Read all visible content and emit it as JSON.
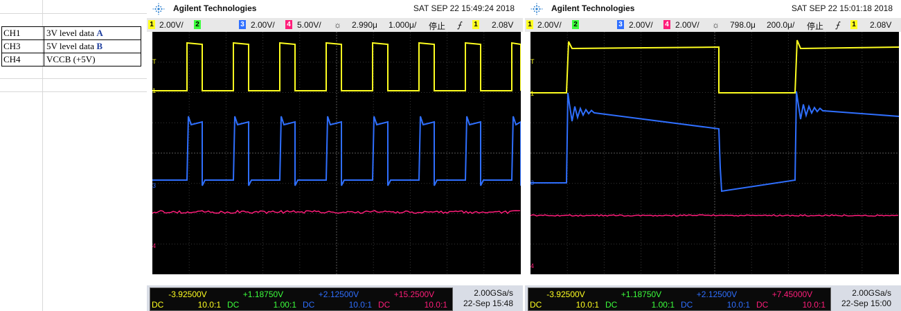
{
  "legend": [
    {
      "ch": "CH1",
      "desc": "3V level data ",
      "marker": "A"
    },
    {
      "ch": "CH3",
      "desc": "5V level data ",
      "marker": "B"
    },
    {
      "ch": "CH4",
      "desc": "VCCB (+5V)",
      "marker": ""
    }
  ],
  "colors": {
    "ch1": "#ffff20",
    "ch2": "#3cff3c",
    "ch3": "#2f6fff",
    "ch4": "#ff1d7a",
    "grid": "#3a3a3a"
  },
  "scope_a": {
    "brand": "Agilent Technologies",
    "timestamp": "SAT SEP 22 15:49:24 2018",
    "status": {
      "ch1_num": "1",
      "ch1_scale": "2.00V/",
      "ch2_num": "2",
      "ch3_num": "3",
      "ch3_scale": "2.00V/",
      "ch4_num": "4",
      "ch4_scale": "5.00V/",
      "delay": "2.990μ",
      "timebase": "1.000μ/",
      "run_state": "停止",
      "trig_src": "1",
      "trig_level": "2.08V"
    },
    "readout": {
      "ch1_offset": "-3.92500V",
      "ch1_coupling": "DC",
      "ch1_probe": "10.0:1",
      "ch2_offset": "+1.18750V",
      "ch2_coupling": "DC",
      "ch2_probe": "1.00:1",
      "ch3_offset": "+2.12500V",
      "ch3_coupling": "DC",
      "ch3_probe": "10.0:1",
      "ch4_offset": "+15.2500V",
      "ch4_coupling": "DC",
      "ch4_probe": "10.0:1"
    },
    "sample_rate": "2.00GSa/s",
    "date": "22-Sep 15:48"
  },
  "scope_b": {
    "brand": "Agilent Technologies",
    "timestamp": "SAT SEP 22 15:01:18 2018",
    "status": {
      "ch1_num": "1",
      "ch1_scale": "2.00V/",
      "ch2_num": "2",
      "ch3_num": "3",
      "ch3_scale": "2.00V/",
      "ch4_num": "4",
      "ch4_scale": "2.00V/",
      "delay": "798.0μ",
      "timebase": "200.0μ/",
      "run_state": "停止",
      "trig_src": "1",
      "trig_level": "2.08V"
    },
    "readout": {
      "ch1_offset": "-3.92500V",
      "ch1_coupling": "DC",
      "ch1_probe": "10.0:1",
      "ch2_offset": "+1.18750V",
      "ch2_coupling": "DC",
      "ch2_probe": "1.00:1",
      "ch3_offset": "+2.12500V",
      "ch3_coupling": "DC",
      "ch3_probe": "10.0:1",
      "ch4_offset": "+7.45000V",
      "ch4_coupling": "DC",
      "ch4_probe": "10.0:1"
    },
    "sample_rate": "2.00GSa/s",
    "date": "22-Sep 15:00"
  },
  "channel_markers": {
    "ch1": "1",
    "ch3": "3",
    "ch4": "4",
    "trig": "T"
  }
}
